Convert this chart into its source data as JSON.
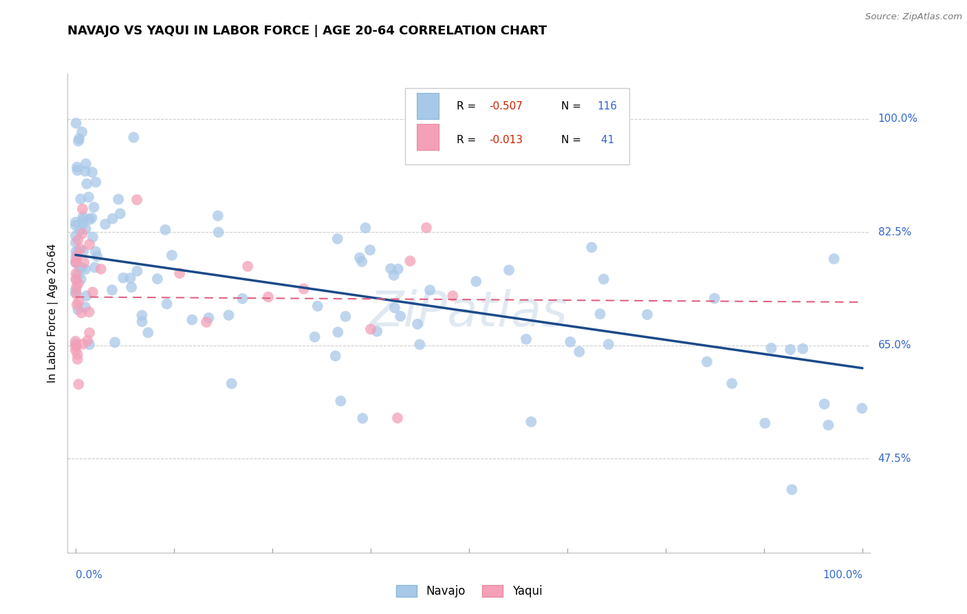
{
  "title": "NAVAJO VS YAQUI IN LABOR FORCE | AGE 20-64 CORRELATION CHART",
  "source_text": "Source: ZipAtlas.com",
  "ylabel": "In Labor Force | Age 20-64",
  "navajo_R": -0.507,
  "navajo_N": 116,
  "yaqui_R": -0.013,
  "yaqui_N": 41,
  "navajo_color": "#a8c8e8",
  "yaqui_color": "#f4a0b8",
  "navajo_line_color": "#1a4a8a",
  "yaqui_line_color": "#e06080",
  "watermark": "ZiPatlas",
  "ytick_labels": [
    "47.5%",
    "65.0%",
    "82.5%",
    "100.0%"
  ],
  "ytick_vals": [
    0.475,
    0.65,
    0.825,
    1.0
  ],
  "legend_color": "#3366cc",
  "r_val_color": "#cc2200",
  "n_val_color": "#3366cc"
}
